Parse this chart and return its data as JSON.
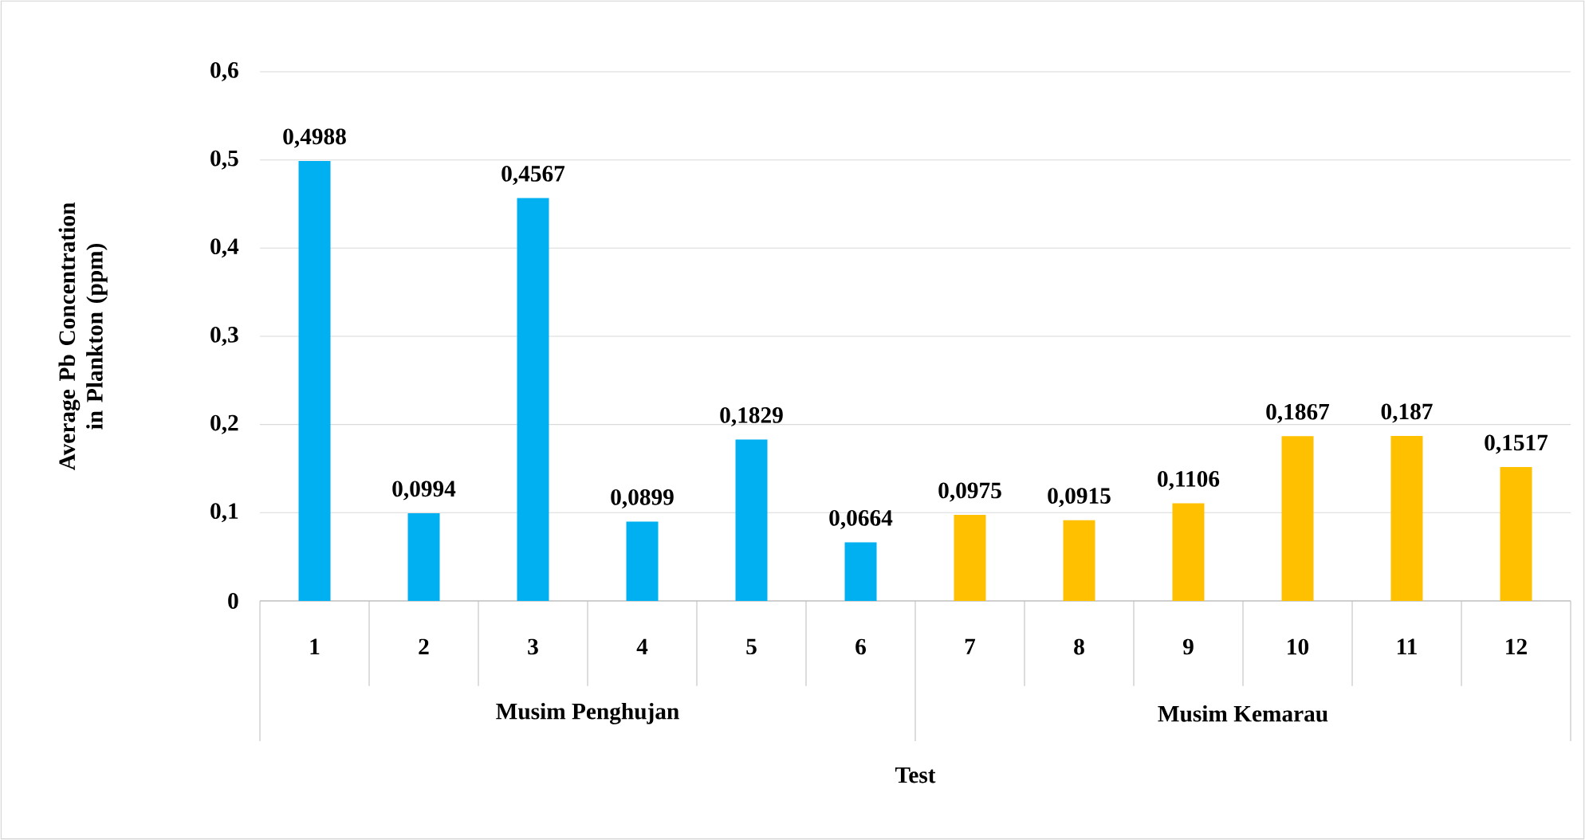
{
  "chart_data": {
    "type": "bar",
    "xlabel": "Test",
    "ylabel": "Average Pb Concentration in Plankton (ppm)",
    "categories": [
      "1",
      "2",
      "3",
      "4",
      "5",
      "6",
      "7",
      "8",
      "9",
      "10",
      "11",
      "12"
    ],
    "series": [
      {
        "color": "#00b0f0",
        "values": [
          0.4988,
          0.0994,
          0.4567,
          0.0899,
          0.1829,
          0.0664,
          null,
          null,
          null,
          null,
          null,
          null
        ],
        "value_labels": [
          "0,4988",
          "0,0994",
          "0,4567",
          "0,0899",
          "0,1829",
          "0,0664",
          null,
          null,
          null,
          null,
          null,
          null
        ]
      },
      {
        "color": "#ffc000",
        "values": [
          null,
          null,
          null,
          null,
          null,
          null,
          0.0975,
          0.0915,
          0.1106,
          0.1867,
          0.187,
          0.1517
        ],
        "value_labels": [
          null,
          null,
          null,
          null,
          null,
          null,
          "0,0975",
          "0,0915",
          "0,1106",
          "0,1867",
          "0,187",
          "0,1517"
        ]
      }
    ],
    "ylim": [
      0,
      0.6
    ],
    "yticks": [
      0,
      {
        "value": 0.1,
        "label": "0,1"
      },
      {
        "value": 0.2,
        "label": "0,2"
      },
      {
        "value": 0.3,
        "label": "0,3"
      },
      {
        "value": 0.4,
        "label": "0,4"
      },
      {
        "value": 0.5,
        "label": "0,5"
      },
      {
        "value": 0.6,
        "label": "0,6"
      }
    ],
    "grid": "y",
    "annotations": [
      "Musim Penghujan",
      "Musim Kemarau"
    ]
  }
}
